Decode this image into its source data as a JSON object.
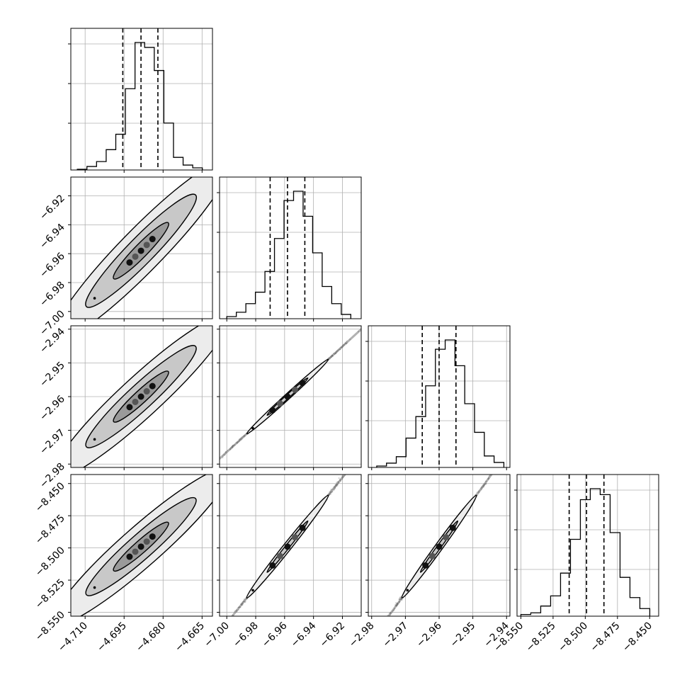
{
  "chart_data": {
    "type": "corner",
    "colors": {
      "ink": "#000000",
      "grid": "#b0b0b0",
      "scatter": "#808080"
    },
    "grid": true,
    "n_params": 4,
    "params": [
      {
        "range": [
          -4.7155,
          -4.661
        ],
        "ticks": [
          -4.71,
          -4.695,
          -4.68,
          -4.665
        ],
        "tick_labels": [
          "−4.710",
          "−4.695",
          "−4.680",
          "−4.665"
        ],
        "quantiles": [
          -4.6955,
          -4.6885,
          -4.682
        ],
        "hist_bin_edges": [
          -4.713,
          -4.7093,
          -4.7056,
          -4.7019,
          -4.6982,
          -4.6945,
          -4.6908,
          -4.6871,
          -4.6834,
          -4.6797,
          -4.676,
          -4.6723,
          -4.6686,
          -4.6649
        ],
        "hist_counts": [
          1,
          5,
          12,
          29,
          51,
          116,
          182,
          175,
          142,
          67,
          18,
          7,
          3
        ]
      },
      {
        "range": [
          -7.005,
          -6.907
        ],
        "ticks": [
          -7.0,
          -6.98,
          -6.96,
          -6.94,
          -6.92
        ],
        "tick_labels": [
          "−7.00",
          "−6.98",
          "−6.96",
          "−6.94",
          "−6.92"
        ],
        "quantiles": [
          -6.97,
          -6.958,
          -6.946
        ],
        "hist_bin_edges": [
          -7.0,
          -6.9934,
          -6.9868,
          -6.9802,
          -6.9736,
          -6.967,
          -6.9604,
          -6.9538,
          -6.9472,
          -6.9406,
          -6.934,
          -6.9274,
          -6.9208,
          -6.9142
        ],
        "hist_counts": [
          3,
          9,
          21,
          37,
          66,
          112,
          165,
          178,
          143,
          92,
          45,
          21,
          6
        ]
      },
      {
        "range": [
          -2.981,
          -2.939
        ],
        "ticks": [
          -2.98,
          -2.97,
          -2.96,
          -2.95,
          -2.94
        ],
        "tick_labels": [
          "−2.98",
          "−2.97",
          "−2.96",
          "−2.95",
          "−2.94"
        ],
        "quantiles": [
          -2.965,
          -2.96,
          -2.955
        ],
        "hist_bin_edges": [
          -2.9785,
          -2.9756,
          -2.9727,
          -2.9698,
          -2.9669,
          -2.964,
          -2.9611,
          -2.9582,
          -2.9553,
          -2.9524,
          -2.9495,
          -2.9466,
          -2.9437,
          -2.9408
        ],
        "hist_counts": [
          2,
          6,
          15,
          41,
          71,
          114,
          165,
          178,
          142,
          89,
          49,
          16,
          7
        ]
      },
      {
        "range": [
          -8.553,
          -8.443
        ],
        "ticks": [
          -8.55,
          -8.525,
          -8.5,
          -8.475,
          -8.45
        ],
        "tick_labels": [
          "−8.550",
          "−8.525",
          "−8.500",
          "−8.475",
          "−8.450"
        ],
        "quantiles": [
          -8.5125,
          -8.499,
          -8.4855
        ],
        "hist_bin_edges": [
          -8.55,
          -8.5423,
          -8.5346,
          -8.5269,
          -8.5192,
          -8.5115,
          -8.5038,
          -8.4961,
          -8.4884,
          -8.4807,
          -8.473,
          -8.4653,
          -8.4576,
          -8.4499
        ],
        "hist_counts": [
          2,
          4,
          12,
          24,
          51,
          91,
          138,
          151,
          144,
          99,
          46,
          22,
          9
        ]
      }
    ],
    "pairs": [
      {
        "row": 1,
        "col": 0,
        "direction": [
          0.01,
          0.0184
        ],
        "half_length": 2.1,
        "sigma_perp": 0.14,
        "scatter_half_length": 2.75,
        "contour_levels": [
          0.5,
          1.0,
          1.6
        ],
        "center": [
          -4.6885,
          -6.958
        ],
        "ellipse_ratio": 0.17
      },
      {
        "row": 2,
        "col": 0,
        "direction": [
          0.01,
          0.0071
        ],
        "half_length": 2.1,
        "sigma_perp": 0.14,
        "scatter_half_length": 2.75,
        "contour_levels": [
          0.5,
          1.0,
          1.6
        ],
        "center": [
          -4.6885,
          -2.96
        ],
        "ellipse_ratio": 0.17
      },
      {
        "row": 2,
        "col": 1,
        "direction": [
          0.0235,
          0.0092
        ],
        "half_length": 1.2,
        "sigma_perp": 0.02,
        "scatter_half_length": 3.6,
        "contour_levels": [
          0.5,
          1.0
        ],
        "center": [
          -6.958,
          -2.96
        ],
        "ellipse_ratio": 0.05
      },
      {
        "row": 3,
        "col": 0,
        "direction": [
          0.01,
          0.0178
        ],
        "half_length": 2.1,
        "sigma_perp": 0.14,
        "scatter_half_length": 2.75,
        "contour_levels": [
          0.5,
          1.0,
          1.6
        ],
        "center": [
          -4.6885,
          -8.499
        ],
        "ellipse_ratio": 0.17
      },
      {
        "row": 3,
        "col": 1,
        "direction": [
          0.0235,
          0.0332
        ],
        "half_length": 1.2,
        "sigma_perp": 0.025,
        "scatter_half_length": 3.6,
        "contour_levels": [
          0.5,
          1.0
        ],
        "center": [
          -6.958,
          -8.499
        ],
        "ellipse_ratio": 0.06
      },
      {
        "row": 3,
        "col": 2,
        "direction": [
          0.0092,
          0.0332
        ],
        "half_length": 1.2,
        "sigma_perp": 0.025,
        "scatter_half_length": 3.6,
        "contour_levels": [
          0.5,
          1.0
        ],
        "center": [
          -2.96,
          -8.499
        ],
        "ellipse_ratio": 0.06
      }
    ]
  }
}
